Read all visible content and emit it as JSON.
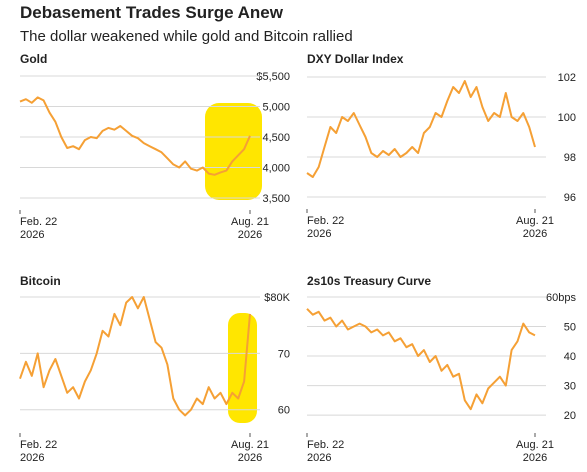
{
  "title": "Debasement Trades Surge Anew",
  "subtitle": "The dollar weakened while gold and Bitcoin rallied",
  "chart_data": [
    {
      "type": "line",
      "title": "Gold",
      "color": "#f5a035",
      "grid": true,
      "categories": [
        "Feb. 22\n2026",
        null,
        null,
        null,
        null,
        null,
        null,
        null,
        null,
        null,
        null,
        null,
        null,
        null,
        null,
        null,
        null,
        null,
        null,
        null,
        null,
        null,
        null,
        null,
        null,
        null,
        null,
        null,
        null,
        null,
        null,
        null,
        null,
        null,
        null,
        null,
        null,
        null,
        null,
        "Aug. 21\n2026"
      ],
      "values": [
        5080,
        5120,
        5060,
        5150,
        5100,
        4900,
        4750,
        4500,
        4320,
        4350,
        4300,
        4450,
        4500,
        4480,
        4600,
        4650,
        4620,
        4680,
        4600,
        4520,
        4480,
        4400,
        4350,
        4300,
        4250,
        4150,
        4050,
        4000,
        4100,
        3980,
        3950,
        4000,
        3900,
        3880,
        3920,
        3950,
        4100,
        4200,
        4300,
        4520
      ],
      "ylim": [
        3500,
        5500
      ],
      "yticks": [
        {
          "value": 5500,
          "label": "$5,500"
        },
        {
          "value": 5000,
          "label": "5,000"
        },
        {
          "value": 4500,
          "label": "4,500"
        },
        {
          "value": 4000,
          "label": "4,000"
        },
        {
          "value": 3500,
          "label": "3,500"
        }
      ]
    },
    {
      "type": "line",
      "title": "DXY Dollar Index",
      "color": "#f5a035",
      "grid": true,
      "categories": [
        "Feb. 22\n2026",
        null,
        null,
        null,
        null,
        null,
        null,
        null,
        null,
        null,
        null,
        null,
        null,
        null,
        null,
        null,
        null,
        null,
        null,
        null,
        null,
        null,
        null,
        null,
        null,
        null,
        null,
        null,
        null,
        null,
        null,
        null,
        null,
        null,
        null,
        null,
        null,
        null,
        null,
        "Aug. 21\n2026"
      ],
      "values": [
        97.2,
        97.0,
        97.5,
        98.5,
        99.5,
        99.2,
        100.0,
        99.8,
        100.2,
        99.6,
        99.0,
        98.2,
        98.0,
        98.3,
        98.1,
        98.4,
        98.0,
        98.2,
        98.5,
        98.2,
        99.2,
        99.5,
        100.2,
        100.0,
        100.8,
        101.5,
        101.2,
        101.8,
        101.0,
        101.5,
        100.5,
        99.8,
        100.2,
        100.0,
        101.2,
        100.0,
        99.8,
        100.2,
        99.5,
        98.5
      ],
      "ylim": [
        96,
        102
      ],
      "yticks": [
        102,
        100,
        98,
        96
      ]
    },
    {
      "type": "line",
      "title": "Bitcoin",
      "color": "#f5a035",
      "grid": true,
      "categories": [
        "Feb. 22\n2026",
        null,
        null,
        null,
        null,
        null,
        null,
        null,
        null,
        null,
        null,
        null,
        null,
        null,
        null,
        null,
        null,
        null,
        null,
        null,
        null,
        null,
        null,
        null,
        null,
        null,
        null,
        null,
        null,
        null,
        null,
        null,
        null,
        null,
        null,
        null,
        null,
        null,
        null,
        "Aug. 21\n2026"
      ],
      "values": [
        65.5,
        68.5,
        66,
        70,
        64,
        67,
        69,
        66,
        63,
        64,
        62,
        65,
        67,
        70,
        74,
        73,
        77,
        75,
        79,
        80,
        78,
        80,
        76,
        72,
        71,
        68,
        62,
        60,
        59,
        60,
        62,
        61,
        64,
        62,
        63,
        61,
        63,
        62,
        65,
        77
      ],
      "ylim": [
        58,
        80
      ],
      "yticks": [
        {
          "value": 80,
          "label": "$80K"
        },
        70,
        60
      ]
    },
    {
      "type": "line",
      "title": "2s10s Treasury Curve",
      "color": "#f5a035",
      "grid": true,
      "categories": [
        "Feb. 22\n2026",
        null,
        null,
        null,
        null,
        null,
        null,
        null,
        null,
        null,
        null,
        null,
        null,
        null,
        null,
        null,
        null,
        null,
        null,
        null,
        null,
        null,
        null,
        null,
        null,
        null,
        null,
        null,
        null,
        null,
        null,
        null,
        null,
        null,
        null,
        null,
        null,
        null,
        null,
        "Aug. 21\n2026"
      ],
      "values": [
        56,
        54,
        55,
        52,
        53,
        50,
        52,
        49,
        50,
        51,
        50,
        48,
        49,
        47,
        48,
        45,
        46,
        43,
        44,
        40,
        42,
        38,
        40,
        35,
        37,
        33,
        34,
        25,
        22,
        27,
        24,
        29,
        31,
        33,
        30,
        42,
        45,
        51,
        48,
        47
      ],
      "ylim": [
        18,
        60
      ],
      "yticks": [
        {
          "value": 60,
          "label": "60bps"
        },
        50,
        40,
        30,
        20
      ]
    }
  ]
}
